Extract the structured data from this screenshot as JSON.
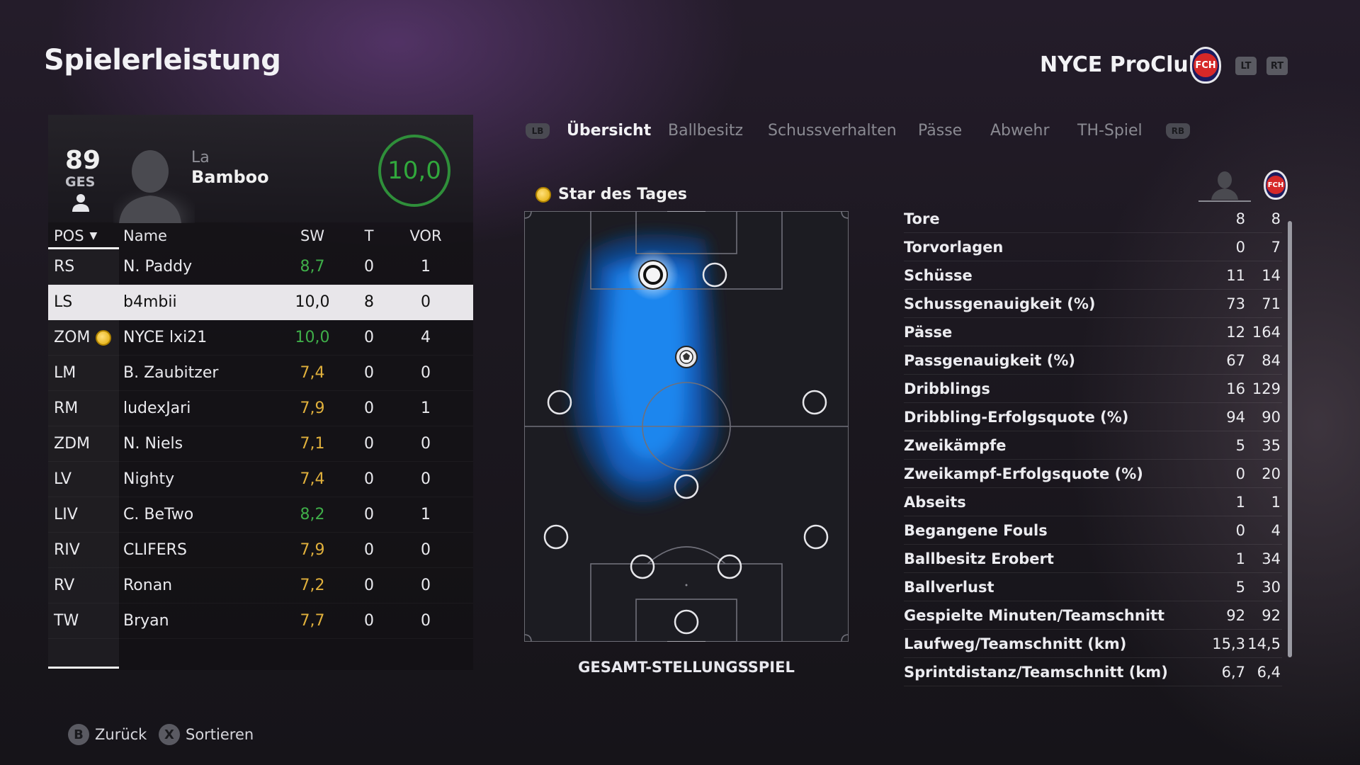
{
  "header": {
    "title": "Spielerleistung",
    "club_name": "NYCE ProClub",
    "club_crest_text": "FCH",
    "trigger_left": "LT",
    "trigger_right": "RT"
  },
  "player": {
    "overall": "89",
    "overall_label": "GES",
    "first_name": "La",
    "last_name": "Bamboo",
    "rating": "10,0"
  },
  "table": {
    "headers": {
      "pos": "POS",
      "name": "Name",
      "sw": "SW",
      "t": "T",
      "vor": "VOR"
    },
    "rows": [
      {
        "pos": "RS",
        "name": "N. Paddy",
        "sw": "8,7",
        "t": "0",
        "vor": "1",
        "rating_color": "good"
      },
      {
        "pos": "LS",
        "name": "b4mbii",
        "sw": "10,0",
        "t": "8",
        "vor": "0",
        "selected": true
      },
      {
        "pos": "ZOM",
        "name": "NYCE lxi21",
        "sw": "10,0",
        "t": "0",
        "vor": "4",
        "rating_color": "good",
        "star": true
      },
      {
        "pos": "LM",
        "name": "B. Zaubitzer",
        "sw": "7,4",
        "t": "0",
        "vor": "0",
        "rating_color": "ok"
      },
      {
        "pos": "RM",
        "name": "ludexJari",
        "sw": "7,9",
        "t": "0",
        "vor": "1",
        "rating_color": "ok"
      },
      {
        "pos": "ZDM",
        "name": "N. Niels",
        "sw": "7,1",
        "t": "0",
        "vor": "0",
        "rating_color": "ok"
      },
      {
        "pos": "LV",
        "name": "Nighty",
        "sw": "7,4",
        "t": "0",
        "vor": "0",
        "rating_color": "ok"
      },
      {
        "pos": "LIV",
        "name": "C. BeTwo",
        "sw": "8,2",
        "t": "0",
        "vor": "1",
        "rating_color": "good"
      },
      {
        "pos": "RIV",
        "name": "CLIFERS",
        "sw": "7,9",
        "t": "0",
        "vor": "0",
        "rating_color": "ok"
      },
      {
        "pos": "RV",
        "name": "Ronan",
        "sw": "7,2",
        "t": "0",
        "vor": "0",
        "rating_color": "ok"
      },
      {
        "pos": "TW",
        "name": "Bryan",
        "sw": "7,7",
        "t": "0",
        "vor": "0",
        "rating_color": "ok"
      }
    ]
  },
  "tabs": {
    "left_bumper": "LB",
    "right_bumper": "RB",
    "items": [
      "Übersicht",
      "Ballbesitz",
      "Schussverhalten",
      "Pässe",
      "Abwehr",
      "TH-Spiel"
    ],
    "active": 0
  },
  "heatmap": {
    "label": "Star des Tages",
    "caption": "GESAMT-STELLUNGSSPIEL"
  },
  "stats": [
    {
      "label": "Tore",
      "player": "8",
      "team": "8"
    },
    {
      "label": "Torvorlagen",
      "player": "0",
      "team": "7"
    },
    {
      "label": "Schüsse",
      "player": "11",
      "team": "14"
    },
    {
      "label": "Schussgenauigkeit (%)",
      "player": "73",
      "team": "71"
    },
    {
      "label": "Pässe",
      "player": "12",
      "team": "164"
    },
    {
      "label": "Passgenauigkeit (%)",
      "player": "67",
      "team": "84"
    },
    {
      "label": "Dribblings",
      "player": "16",
      "team": "129"
    },
    {
      "label": "Dribbling-Erfolgsquote (%)",
      "player": "94",
      "team": "90"
    },
    {
      "label": "Zweikämpfe",
      "player": "5",
      "team": "35"
    },
    {
      "label": "Zweikampf-Erfolgsquote (%)",
      "player": "0",
      "team": "20"
    },
    {
      "label": "Abseits",
      "player": "1",
      "team": "1"
    },
    {
      "label": "Begangene Fouls",
      "player": "0",
      "team": "4"
    },
    {
      "label": "Ballbesitz Erobert",
      "player": "1",
      "team": "34"
    },
    {
      "label": "Ballverlust",
      "player": "5",
      "team": "30"
    },
    {
      "label": "Gespielte Minuten/Teamschnitt",
      "player": "92",
      "team": "92"
    },
    {
      "label": "Laufweg/Teamschnitt (km)",
      "player": "15,3",
      "team": "14,5"
    },
    {
      "label": "Sprintdistanz/Teamschnitt (km)",
      "player": "6,7",
      "team": "6,4"
    }
  ],
  "footer": {
    "back_button": "B",
    "back_label": "Zurück",
    "sort_button": "X",
    "sort_label": "Sortieren"
  },
  "colors": {
    "rating_good": "#3fae49",
    "rating_ok": "#e0b03c",
    "heat_blue": "#1f7fe0",
    "crest_red": "#d62828"
  }
}
